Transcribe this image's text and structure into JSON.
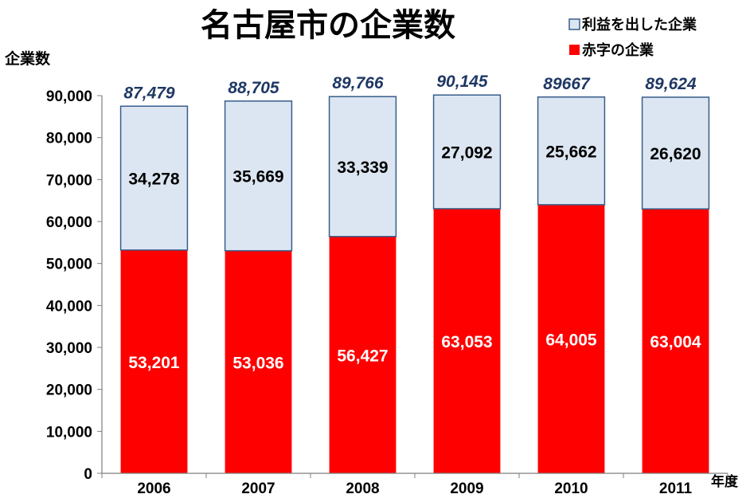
{
  "chart_data": {
    "type": "bar",
    "stacked": true,
    "title": "名古屋市の企業数",
    "ylabel": "企業数",
    "xlabel": "年度",
    "ylim": [
      0,
      90000
    ],
    "yticks": [
      0,
      10000,
      20000,
      30000,
      40000,
      50000,
      60000,
      70000,
      80000,
      90000
    ],
    "ytick_labels": [
      "0",
      "10,000",
      "20,000",
      "30,000",
      "40,000",
      "50,000",
      "60,000",
      "70,000",
      "80,000",
      "90,000"
    ],
    "grid": false,
    "legend_position": "top-right",
    "categories": [
      "2006",
      "2007",
      "2008",
      "2009",
      "2010",
      "2011"
    ],
    "series": [
      {
        "name": "赤字の企業",
        "color": "#FF0000",
        "values": [
          53201,
          53036,
          56427,
          63053,
          64005,
          63004
        ],
        "labels": [
          "53,201",
          "53,036",
          "56,427",
          "63,053",
          "64,005",
          "63,004"
        ]
      },
      {
        "name": "利益を出した企業",
        "color": "#DCE6F2",
        "values": [
          34278,
          35669,
          33339,
          27092,
          25662,
          26620
        ],
        "labels": [
          "34,278",
          "35,669",
          "33,339",
          "27,092",
          "25,662",
          "26,620"
        ]
      }
    ],
    "totals": [
      87479,
      88705,
      89766,
      90145,
      89667,
      89624
    ],
    "total_labels": [
      "87,479",
      "88,705",
      "89,766",
      "90,145",
      "89667",
      "89,624"
    ]
  }
}
